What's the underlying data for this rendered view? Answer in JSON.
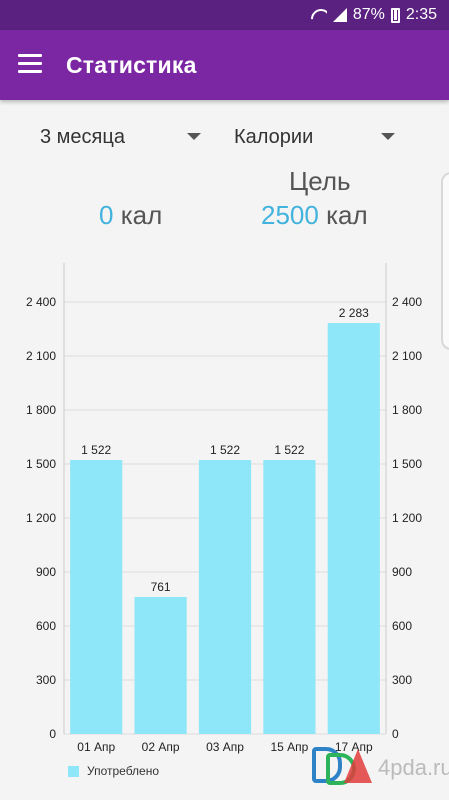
{
  "status_bar": {
    "battery": "87%",
    "time": "2:35",
    "icons": [
      "wifi-icon",
      "signal-icon",
      "battery-charging-icon"
    ]
  },
  "app_bar": {
    "title": "Статистика",
    "menu_icon": "hamburger-menu-icon"
  },
  "filters": {
    "period": "3 месяца",
    "metric": "Калории"
  },
  "summary": {
    "goal_label": "Цель",
    "consumed_value": "0",
    "goal_value": "2500",
    "unit": "кал"
  },
  "colors": {
    "status_bar": "#5a2180",
    "app_bar": "#7b27a3",
    "accent": "#41b3dd",
    "bar": "#8ee6f9"
  },
  "chart_data": {
    "type": "bar",
    "categories": [
      "01 Апр",
      "02 Апр",
      "03 Апр",
      "15 Апр",
      "17 Апр"
    ],
    "series": [
      {
        "name": "Употреблено",
        "values": [
          1522,
          761,
          1522,
          1522,
          2283
        ]
      }
    ],
    "value_labels": [
      "1 522",
      "761",
      "1 522",
      "1 522",
      "2 283"
    ],
    "y_ticks": [
      "0",
      "300",
      "600",
      "900",
      "1 200",
      "1 500",
      "1 800",
      "2 100",
      "2 400"
    ],
    "y_tick_values": [
      0,
      300,
      600,
      900,
      1200,
      1500,
      1800,
      2100,
      2400
    ],
    "ylim": [
      0,
      2400
    ],
    "grid": true,
    "legend": "bottom-left",
    "axes": "left-and-right"
  },
  "watermark": {
    "text": "4pda.ru"
  }
}
